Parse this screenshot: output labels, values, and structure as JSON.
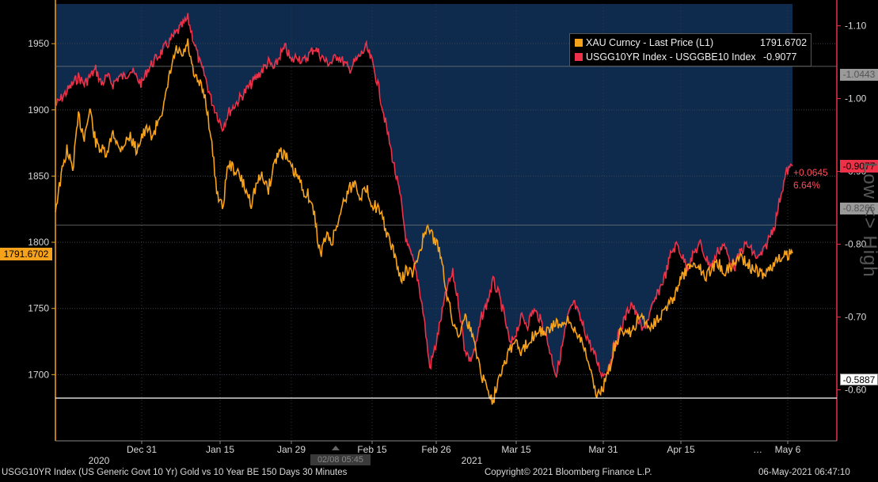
{
  "chart_data": {
    "type": "line",
    "title": "",
    "footer_left": "USGG10YR Index (US Generic Govt 10 Yr) Gold vs 10 Year BE 150 Days 30 Minutes",
    "footer_center": "Copyright© 2021 Bloomberg Finance L.P.",
    "footer_right": "06-May-2021 06:47:10",
    "x_ticks": [
      "Dec 31",
      "Jan 15",
      "Jan 29",
      "Feb 15",
      "Feb 26",
      "Mar 15",
      "Mar 31",
      "Apr 15",
      "May 6"
    ],
    "year_labels": [
      "2020",
      "2021"
    ],
    "y_left": {
      "ticks": [
        "1950",
        "1900",
        "1850",
        "1800",
        "1750",
        "1700"
      ],
      "range": [
        1650,
        1980
      ]
    },
    "y_right": {
      "ticks": [
        "-1.10",
        "-1.00",
        "-0.90",
        "-0.80",
        "-0.70",
        "-0.60"
      ],
      "range": [
        -0.53,
        -1.13
      ]
    },
    "series": [
      {
        "name": "XAU Curncy - Last Price (L1)",
        "last_value": "1791.6702",
        "color": "#f7a21b",
        "axis": "left",
        "values": [
          1825,
          1850,
          1870,
          1855,
          1895,
          1880,
          1900,
          1875,
          1870,
          1865,
          1885,
          1870,
          1875,
          1880,
          1870,
          1880,
          1885,
          1880,
          1895,
          1905,
          1930,
          1945,
          1940,
          1950,
          1925,
          1920,
          1910,
          1880,
          1840,
          1825,
          1860,
          1855,
          1850,
          1840,
          1830,
          1845,
          1850,
          1840,
          1860,
          1870,
          1865,
          1855,
          1850,
          1840,
          1835,
          1820,
          1790,
          1805,
          1800,
          1815,
          1830,
          1840,
          1845,
          1835,
          1840,
          1830,
          1825,
          1815,
          1800,
          1790,
          1770,
          1780,
          1775,
          1790,
          1805,
          1810,
          1800,
          1790,
          1760,
          1740,
          1730,
          1745,
          1735,
          1720,
          1700,
          1690,
          1680,
          1700,
          1710,
          1720,
          1725,
          1715,
          1725,
          1730,
          1735,
          1730,
          1735,
          1740,
          1735,
          1740,
          1735,
          1730,
          1720,
          1700,
          1685,
          1690,
          1700,
          1720,
          1730,
          1735,
          1730,
          1740,
          1745,
          1735,
          1740,
          1745,
          1750,
          1755,
          1765,
          1775,
          1780,
          1785,
          1780,
          1775,
          1780,
          1785,
          1778,
          1780,
          1785,
          1790,
          1785,
          1780,
          1778,
          1775,
          1780,
          1785,
          1788,
          1790,
          1791.67
        ]
      },
      {
        "name": "USGG10YR Index - USGGBE10 Index",
        "last_value": "-0.9077",
        "color": "#ec3149",
        "axis": "right",
        "change": "+0.0645",
        "change_pct": "6.64%",
        "values": [
          -0.99,
          -1.0,
          -1.01,
          -1.02,
          -1.03,
          -1.02,
          -1.03,
          -1.04,
          -1.02,
          -1.03,
          -1.02,
          -1.03,
          -1.03,
          -1.04,
          -1.03,
          -1.02,
          -1.04,
          -1.05,
          -1.06,
          -1.07,
          -1.08,
          -1.09,
          -1.1,
          -1.11,
          -1.08,
          -1.05,
          -1.03,
          -1.0,
          -0.98,
          -0.96,
          -0.98,
          -0.99,
          -1.0,
          -1.01,
          -1.02,
          -1.03,
          -1.04,
          -1.05,
          -1.04,
          -1.06,
          -1.07,
          -1.05,
          -1.06,
          -1.05,
          -1.06,
          -1.07,
          -1.06,
          -1.05,
          -1.05,
          -1.06,
          -1.05,
          -1.04,
          -1.05,
          -1.06,
          -1.07,
          -1.05,
          -1.02,
          -0.98,
          -0.94,
          -0.9,
          -0.86,
          -0.8,
          -0.78,
          -0.75,
          -0.7,
          -0.63,
          -0.66,
          -0.7,
          -0.74,
          -0.76,
          -0.72,
          -0.66,
          -0.64,
          -0.66,
          -0.7,
          -0.72,
          -0.75,
          -0.73,
          -0.7,
          -0.66,
          -0.68,
          -0.7,
          -0.69,
          -0.71,
          -0.7,
          -0.68,
          -0.65,
          -0.62,
          -0.66,
          -0.7,
          -0.72,
          -0.7,
          -0.68,
          -0.66,
          -0.64,
          -0.62,
          -0.63,
          -0.66,
          -0.68,
          -0.7,
          -0.72,
          -0.7,
          -0.68,
          -0.7,
          -0.72,
          -0.74,
          -0.76,
          -0.79,
          -0.8,
          -0.78,
          -0.77,
          -0.79,
          -0.8,
          -0.78,
          -0.77,
          -0.79,
          -0.8,
          -0.78,
          -0.77,
          -0.79,
          -0.8,
          -0.79,
          -0.78,
          -0.79,
          -0.81,
          -0.83,
          -0.87,
          -0.9,
          -0.9077
        ]
      }
    ],
    "horizontal_lines": [
      {
        "value": "-1.0443",
        "axis": "right"
      },
      {
        "value": "-0.5887",
        "axis": "right"
      },
      {
        "value": "-0.8265",
        "axis": "right"
      }
    ],
    "vertical_label": "Low <> High",
    "cursor_label": "02/08 05:45"
  },
  "last_left_label": "1791.6702",
  "last_right_label": "-0.9077",
  "marker_top": "-1.0443",
  "marker_mid": "-0.8265",
  "marker_bottom": "-0.5887",
  "change_line1": "+0.0645",
  "change_line2": "6.64%",
  "legend": {
    "row1_name": "XAU Curncy - Last Price (L1)",
    "row1_value": "1791.6702",
    "row2_name": "USGG10YR Index - USGGBE10 Index",
    "row2_value": "-0.9077"
  }
}
